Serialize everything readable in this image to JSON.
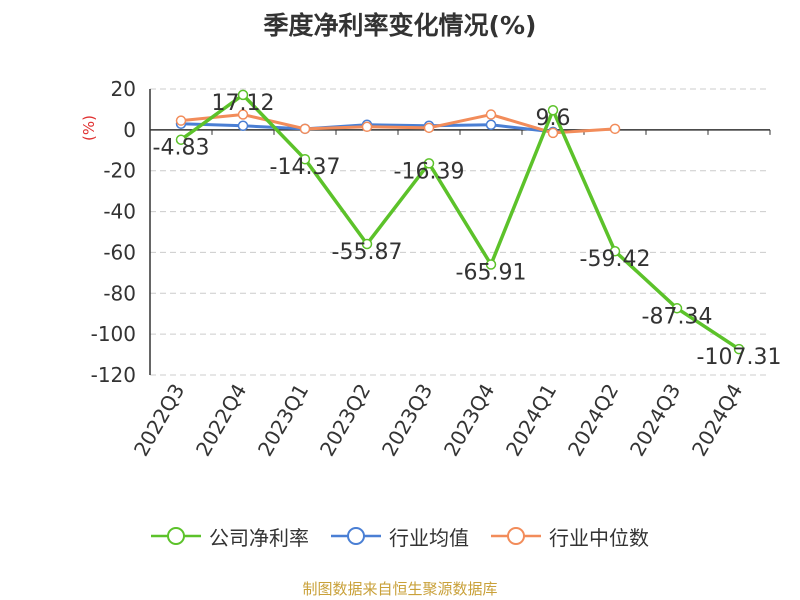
{
  "chart_data": {
    "type": "line",
    "title": "季度净利率变化情况(%)",
    "ylabel": "(%)",
    "xlabel": "",
    "ylim": [
      -120,
      20
    ],
    "yticks": [
      20,
      0,
      -20,
      -40,
      -60,
      -80,
      -100,
      -120
    ],
    "categories": [
      "2022Q3",
      "2022Q4",
      "2023Q1",
      "2023Q2",
      "2023Q3",
      "2023Q4",
      "2024Q1",
      "2024Q2",
      "2024Q3",
      "2024Q4"
    ],
    "grid": true,
    "legend_position": "bottom",
    "series": [
      {
        "name": "公司净利率",
        "color": "#5cc22a",
        "values": [
          -4.83,
          17.12,
          -14.37,
          -55.87,
          -16.39,
          -65.91,
          9.6,
          -59.42,
          -87.34,
          -107.31
        ],
        "labels": [
          "-4.83",
          "17.12",
          "-14.37",
          "-55.87",
          "-16.39",
          "-65.91",
          "9.6",
          "-59.42",
          "-87.34",
          "-107.31"
        ]
      },
      {
        "name": "行业均值",
        "color": "#4a7fd4",
        "values": [
          3.0,
          2.0,
          0.5,
          2.5,
          2.0,
          2.5,
          -1.0,
          null,
          null,
          null
        ]
      },
      {
        "name": "行业中位数",
        "color": "#f28c5a",
        "values": [
          4.5,
          7.5,
          0.5,
          1.5,
          1.0,
          7.5,
          -1.5,
          0.5,
          null,
          null
        ]
      }
    ]
  },
  "source_text": "制图数据来自恒生聚源数据库"
}
